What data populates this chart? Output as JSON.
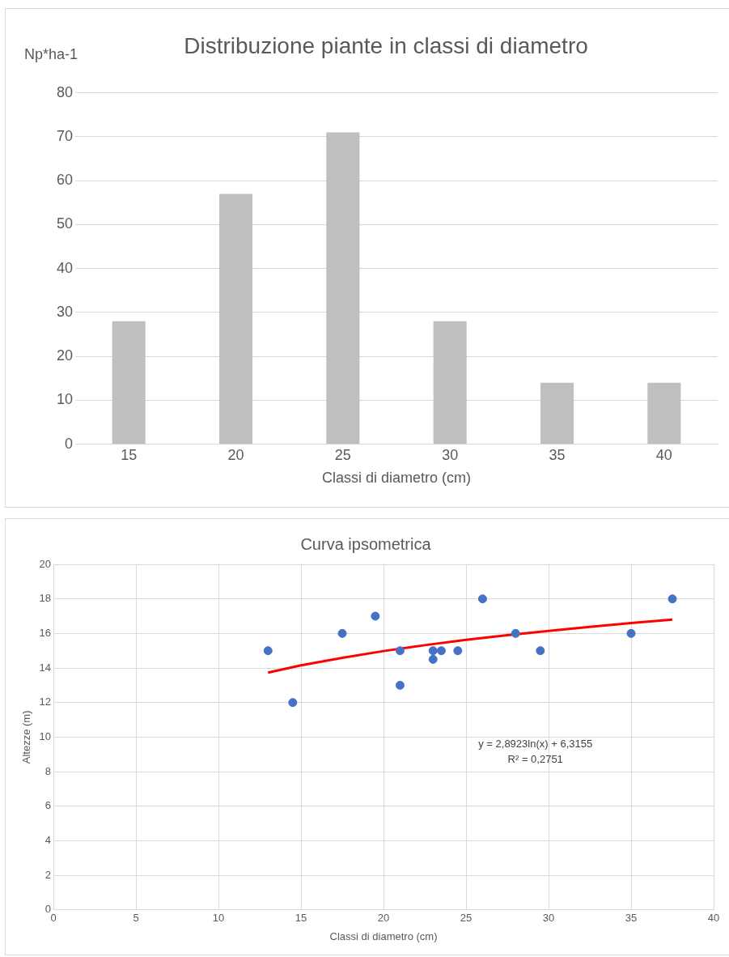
{
  "chart_data": [
    {
      "type": "bar",
      "title": "Distribuzione piante in classi di diametro",
      "xlabel": "Classi di diametro (cm)",
      "ylabel": "Np*ha-1",
      "categories": [
        "15",
        "20",
        "25",
        "30",
        "35",
        "40"
      ],
      "values": [
        28,
        57,
        71,
        28,
        14,
        14
      ],
      "color": "#bfbfbf",
      "ylim": [
        0,
        80
      ],
      "yticks": [
        0,
        10,
        20,
        30,
        40,
        50,
        60,
        70,
        80
      ],
      "grid": "y",
      "legend": false
    },
    {
      "type": "scatter",
      "title": "Curva ipsometrica",
      "xlabel": "Classi di diametro (cm)",
      "ylabel": "Altezze (m)",
      "xlim": [
        0,
        40
      ],
      "xticks": [
        0,
        5,
        10,
        15,
        20,
        25,
        30,
        35,
        40
      ],
      "ylim": [
        0,
        20
      ],
      "yticks": [
        0,
        2,
        4,
        6,
        8,
        10,
        12,
        14,
        16,
        18,
        20
      ],
      "grid": true,
      "legend": false,
      "marker": "circle",
      "series": [
        {
          "type": "scatter",
          "color": "#4472c4",
          "x": [
            13,
            14.5,
            17.5,
            19.5,
            21,
            21,
            23,
            23,
            23.5,
            24.5,
            26,
            28,
            29.5,
            35,
            37.5
          ],
          "values": [
            15,
            12,
            16,
            17,
            15,
            13,
            15,
            14.5,
            15,
            15,
            18,
            16,
            15,
            16,
            18
          ]
        },
        {
          "type": "line",
          "color": "#ff0000",
          "marker": "none",
          "line_style": "solid",
          "x": [
            13,
            15,
            17.5,
            20,
            22.5,
            25,
            27.5,
            30,
            32.5,
            35,
            37.5
          ],
          "values": [
            13.73,
            14.15,
            14.59,
            14.98,
            15.32,
            15.63,
            15.9,
            16.15,
            16.38,
            16.6,
            16.8
          ]
        }
      ],
      "annotations": [
        "y = 2,8923ln(x) + 6,3155",
        "R² = 0,2751"
      ]
    }
  ]
}
